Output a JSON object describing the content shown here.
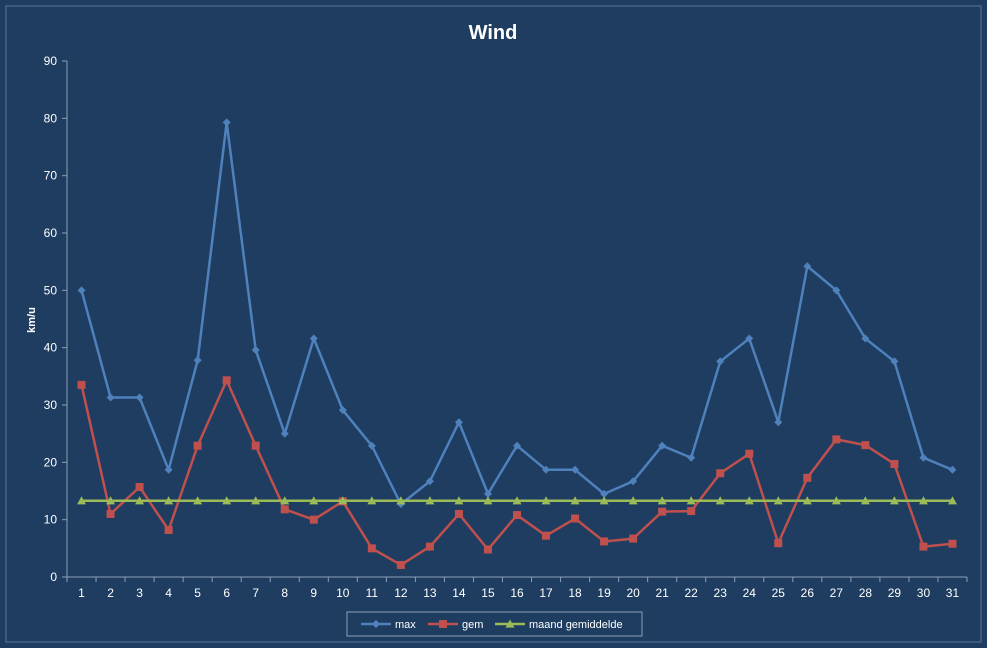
{
  "chart_data": {
    "type": "line",
    "title": "Wind",
    "ylabel": "km/u",
    "xlabel": "",
    "ylim": [
      0,
      90
    ],
    "yticks": [
      0,
      10,
      20,
      30,
      40,
      50,
      60,
      70,
      80,
      90
    ],
    "categories": [
      "1",
      "2",
      "3",
      "4",
      "5",
      "6",
      "7",
      "8",
      "9",
      "10",
      "11",
      "12",
      "13",
      "14",
      "15",
      "16",
      "17",
      "18",
      "19",
      "20",
      "21",
      "22",
      "23",
      "24",
      "25",
      "26",
      "27",
      "28",
      "29",
      "30",
      "31"
    ],
    "grid": false,
    "legend_position": "bottom",
    "series": [
      {
        "name": "max",
        "color": "#4f81bd",
        "marker": "diamond",
        "values": [
          50,
          31.3,
          31.3,
          18.7,
          37.8,
          79.3,
          39.6,
          25,
          41.6,
          29.1,
          22.9,
          12.7,
          16.7,
          27,
          14.5,
          22.9,
          18.7,
          18.7,
          14.5,
          16.7,
          22.9,
          20.8,
          37.6,
          41.6,
          27,
          54.2,
          50,
          41.6,
          37.6,
          20.8,
          18.7
        ]
      },
      {
        "name": "gem",
        "color": "#c0504d",
        "marker": "square",
        "values": [
          33.5,
          11,
          15.7,
          8.2,
          22.9,
          34.3,
          22.9,
          11.8,
          10,
          13.2,
          5,
          2.1,
          5.3,
          11,
          4.8,
          10.8,
          7.2,
          10.2,
          6.2,
          6.7,
          11.4,
          11.5,
          18.1,
          21.5,
          5.9,
          17.3,
          24,
          23,
          19.7,
          5.3,
          5.8
        ]
      },
      {
        "name": "maand gemiddelde",
        "color": "#9bbb59",
        "marker": "triangle",
        "values": [
          13.3,
          13.3,
          13.3,
          13.3,
          13.3,
          13.3,
          13.3,
          13.3,
          13.3,
          13.3,
          13.3,
          13.3,
          13.3,
          13.3,
          13.3,
          13.3,
          13.3,
          13.3,
          13.3,
          13.3,
          13.3,
          13.3,
          13.3,
          13.3,
          13.3,
          13.3,
          13.3,
          13.3,
          13.3,
          13.3,
          13.3
        ]
      }
    ]
  }
}
